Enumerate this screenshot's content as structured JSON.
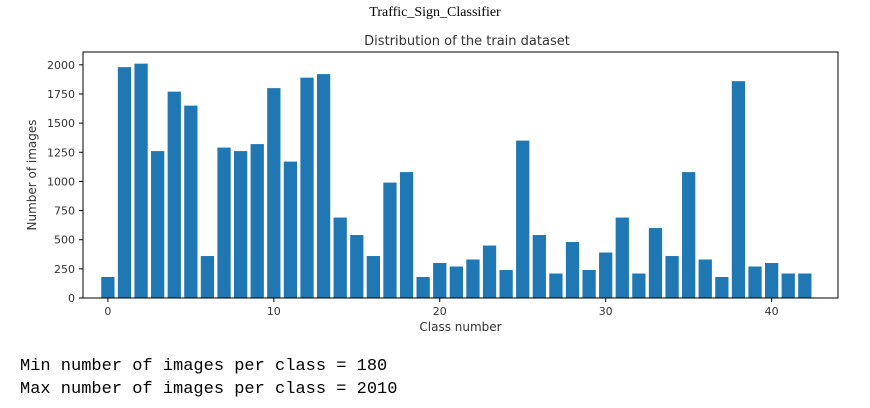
{
  "header": {
    "title": "Traffic_Sign_Classifier"
  },
  "chart_data": {
    "type": "bar",
    "title": "Distribution of the train dataset",
    "xlabel": "Class number",
    "ylabel": "Number of images",
    "x": [
      0,
      1,
      2,
      3,
      4,
      5,
      6,
      7,
      8,
      9,
      10,
      11,
      12,
      13,
      14,
      15,
      16,
      17,
      18,
      19,
      20,
      21,
      22,
      23,
      24,
      25,
      26,
      27,
      28,
      29,
      30,
      31,
      32,
      33,
      34,
      35,
      36,
      37,
      38,
      39,
      40,
      41,
      42
    ],
    "values": [
      180,
      1980,
      2010,
      1260,
      1770,
      1650,
      360,
      1290,
      1260,
      1320,
      1800,
      1170,
      1890,
      1920,
      690,
      540,
      360,
      990,
      1080,
      180,
      300,
      270,
      330,
      450,
      240,
      1350,
      540,
      210,
      480,
      240,
      390,
      690,
      210,
      600,
      360,
      1080,
      330,
      180,
      1860,
      270,
      300,
      210,
      210
    ],
    "xlim": [
      -1.5,
      44
    ],
    "ylim": [
      0,
      2110
    ],
    "xticks": [
      0,
      10,
      20,
      30,
      40
    ],
    "yticks": [
      0,
      250,
      500,
      750,
      1000,
      1250,
      1500,
      1750,
      2000
    ],
    "color": "#1f77b4",
    "grid": false
  },
  "output": {
    "line1": "Min number of images per class = 180",
    "line2": "Max number of images per class = 2010"
  }
}
